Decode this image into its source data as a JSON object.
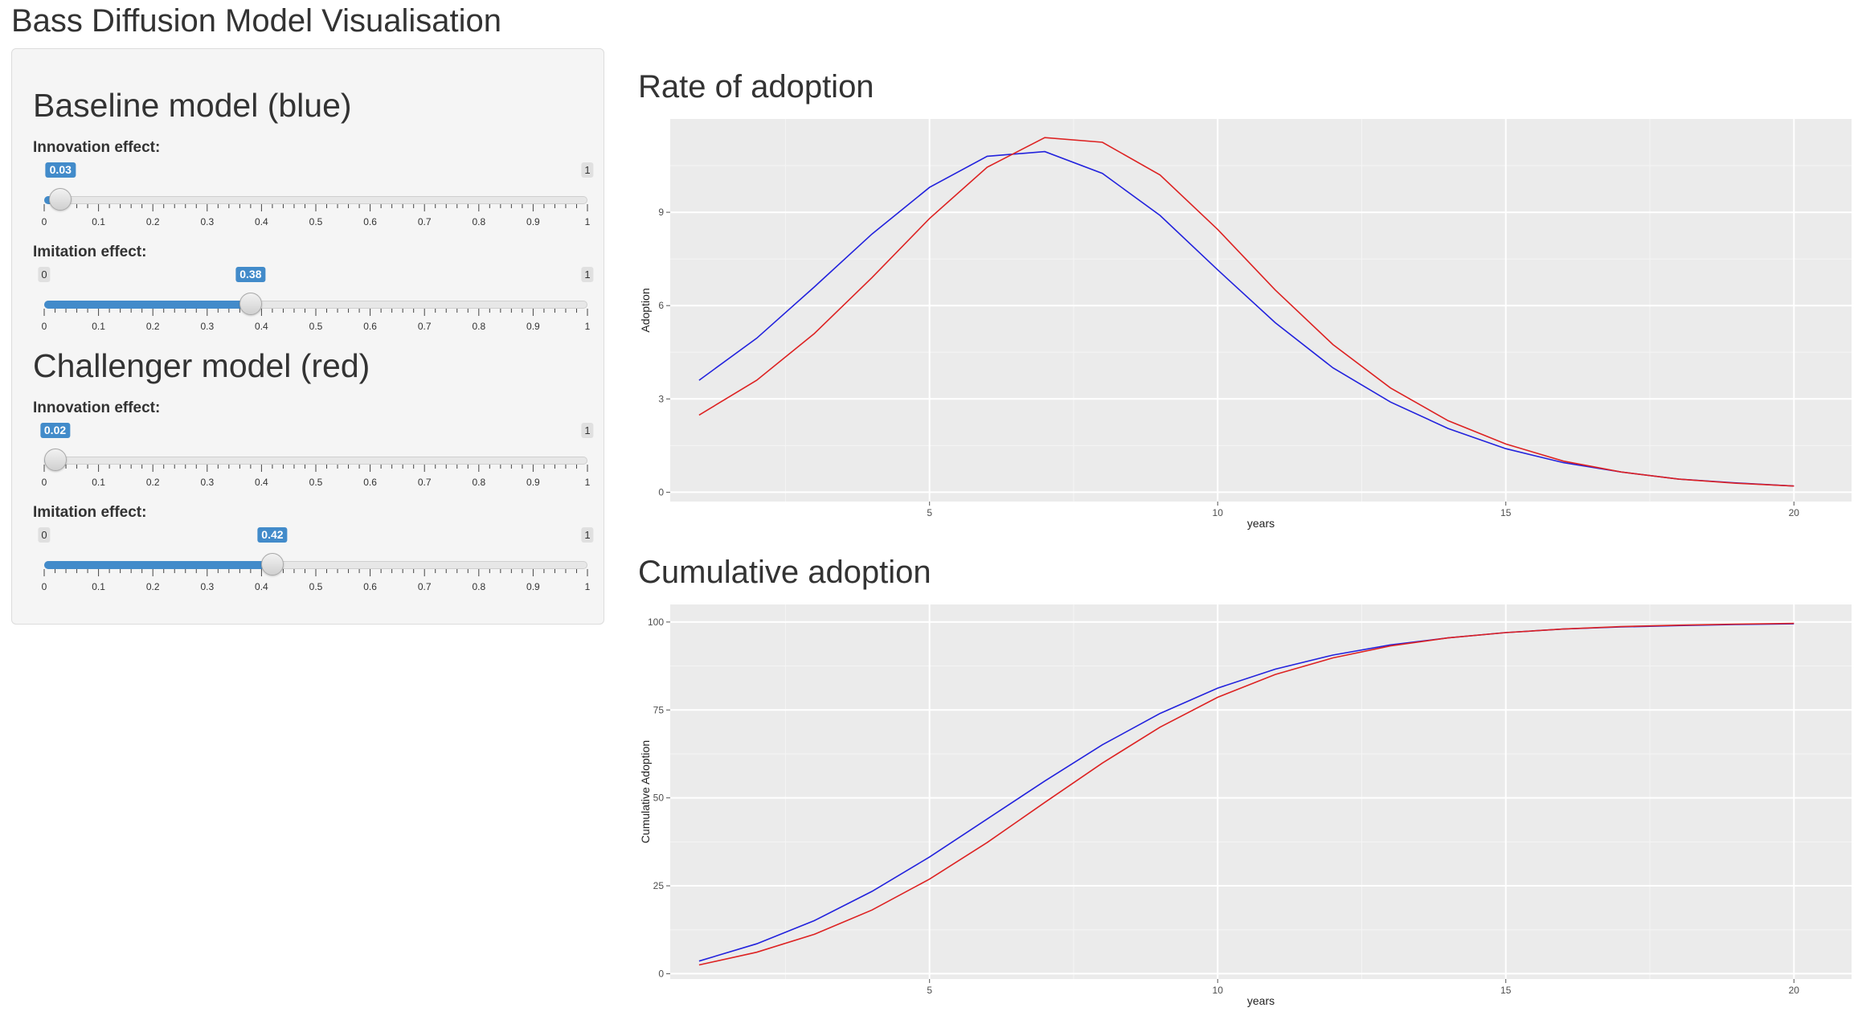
{
  "page": {
    "title": "Bass Diffusion Model Visualisation"
  },
  "sidebar": {
    "baseline": {
      "heading": "Baseline model (blue)",
      "innovation": {
        "label": "Innovation effect:",
        "value": 0.03,
        "value_label": "0.03",
        "min_label": "0",
        "max_label": "1"
      },
      "imitation": {
        "label": "Imitation effect:",
        "value": 0.38,
        "value_label": "0.38",
        "min_label": "0",
        "max_label": "1"
      }
    },
    "challenger": {
      "heading": "Challenger model (red)",
      "innovation": {
        "label": "Innovation effect:",
        "value": 0.02,
        "value_label": "0.02",
        "min_label": "0",
        "max_label": "1"
      },
      "imitation": {
        "label": "Imitation effect:",
        "value": 0.42,
        "value_label": "0.42",
        "min_label": "0",
        "max_label": "1"
      }
    },
    "slider_ticks": [
      "0",
      "0.1",
      "0.2",
      "0.3",
      "0.4",
      "0.5",
      "0.6",
      "0.7",
      "0.8",
      "0.9",
      "1"
    ]
  },
  "main": {
    "rate_title": "Rate of adoption",
    "cumulative_title": "Cumulative adoption"
  },
  "colors": {
    "baseline": "#2222dd",
    "challenger": "#dd2222",
    "accent": "#428bca",
    "panel_bg": "#ebebeb"
  },
  "chart_data": [
    {
      "type": "line",
      "xlabel": "years",
      "ylabel": "Adoption",
      "xlim": [
        0.5,
        21
      ],
      "ylim": [
        -0.3,
        12.0
      ],
      "xticks": [
        5,
        10,
        15,
        20
      ],
      "yticks": [
        0,
        3,
        6,
        9
      ],
      "grid": true,
      "x": [
        1,
        2,
        3,
        4,
        5,
        6,
        7,
        8,
        9,
        10,
        11,
        12,
        13,
        14,
        15,
        16,
        17,
        18,
        19,
        20
      ],
      "series": [
        {
          "name": "",
          "color": "#2222dd",
          "values": [
            3.6,
            4.95,
            6.6,
            8.3,
            9.8,
            10.8,
            10.95,
            10.25,
            8.9,
            7.15,
            5.45,
            4.0,
            2.9,
            2.05,
            1.4,
            0.95,
            0.65,
            0.42,
            0.3,
            0.2
          ]
        },
        {
          "name": "",
          "color": "#dd2222",
          "values": [
            2.48,
            3.6,
            5.1,
            6.9,
            8.8,
            10.45,
            11.4,
            11.25,
            10.2,
            8.45,
            6.5,
            4.75,
            3.35,
            2.3,
            1.55,
            1.0,
            0.65,
            0.42,
            0.29,
            0.2
          ]
        }
      ]
    },
    {
      "type": "line",
      "xlabel": "years",
      "ylabel": "Cumulative Adoption",
      "xlim": [
        0.5,
        21
      ],
      "ylim": [
        -1.5,
        105
      ],
      "xticks": [
        5,
        10,
        15,
        20
      ],
      "yticks": [
        0,
        25,
        50,
        75,
        100
      ],
      "grid": true,
      "x": [
        1,
        2,
        3,
        4,
        5,
        6,
        7,
        8,
        9,
        10,
        11,
        12,
        13,
        14,
        15,
        16,
        17,
        18,
        19,
        20
      ],
      "series": [
        {
          "name": "",
          "color": "#2222dd",
          "values": [
            3.6,
            8.5,
            15.1,
            23.4,
            33.2,
            44.0,
            54.8,
            65.1,
            74.0,
            81.2,
            86.6,
            90.6,
            93.5,
            95.5,
            97.0,
            98.0,
            98.6,
            99.0,
            99.3,
            99.5
          ]
        },
        {
          "name": "",
          "color": "#dd2222",
          "values": [
            2.5,
            6.1,
            11.2,
            18.1,
            26.9,
            37.3,
            48.7,
            59.9,
            70.1,
            78.6,
            85.1,
            89.8,
            93.2,
            95.5,
            97.0,
            98.0,
            98.7,
            99.1,
            99.4,
            99.6
          ]
        }
      ]
    }
  ]
}
